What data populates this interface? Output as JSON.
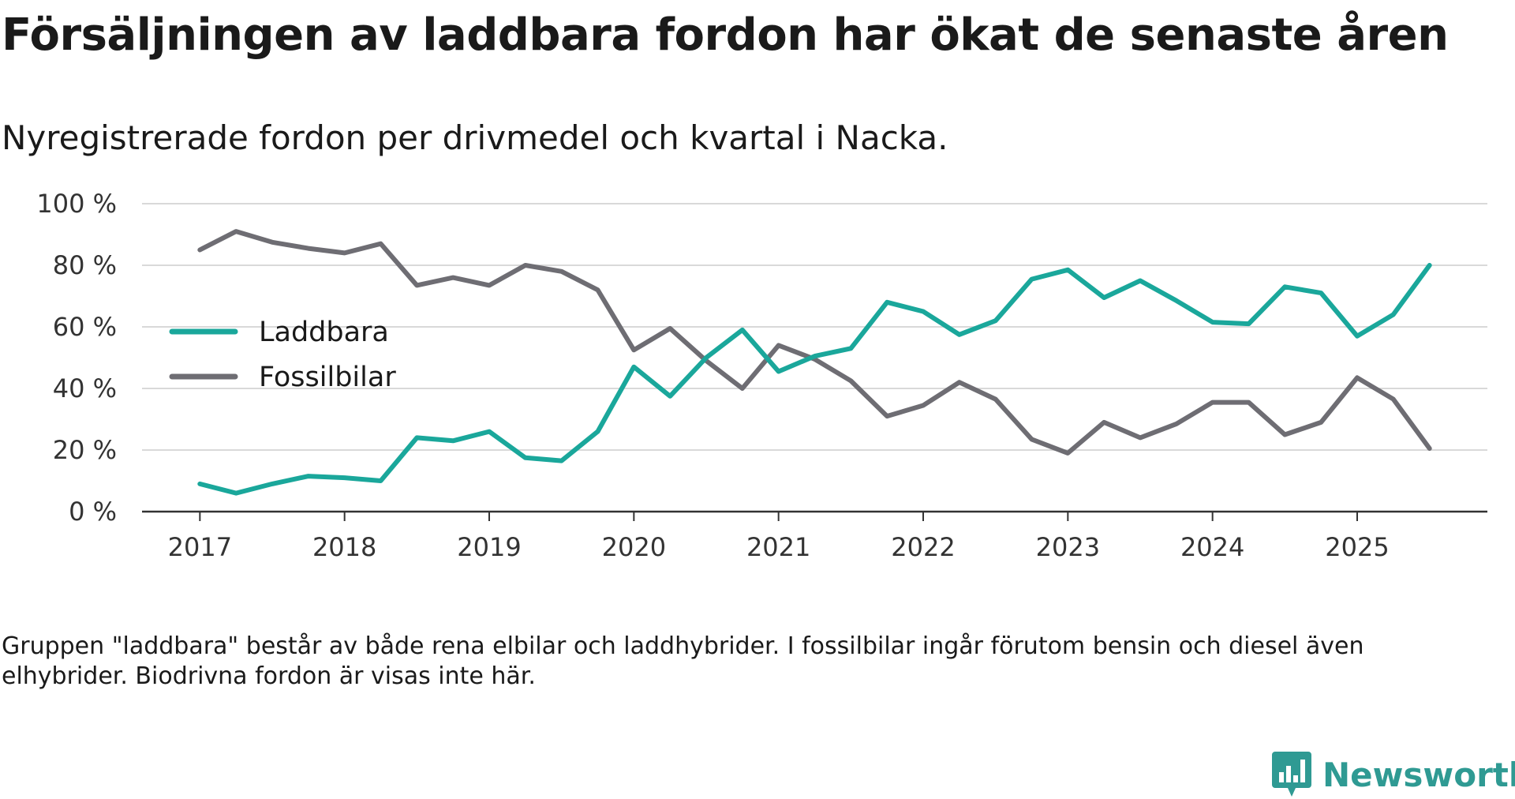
{
  "title": "Försäljningen av laddbara fordon har ökat de senaste åren",
  "subtitle": "Nyregistrerade fordon per drivmedel och kvartal i Nacka.",
  "footnote": "Gruppen \"laddbara\" består av både rena elbilar och laddhybrider. I fossilbilar ingår förutom bensin och diesel även elhybrider. Biodrivna fordon är visas inte här.",
  "brand": {
    "name": "Newsworthy",
    "icon": "newsworthy-logo-icon"
  },
  "colors": {
    "laddbara": "#1aa79b",
    "fossilbilar": "#6e6d73",
    "grid": "#d9d9d9",
    "axis": "#333333",
    "brand": "#2f9a93"
  },
  "chart_data": {
    "type": "line",
    "title": "Försäljningen av laddbara fordon har ökat de senaste åren",
    "subtitle": "Nyregistrerade fordon per drivmedel och kvartal i Nacka.",
    "xlabel": "",
    "ylabel": "",
    "x": [
      2017.0,
      2017.25,
      2017.5,
      2017.75,
      2018.0,
      2018.25,
      2018.5,
      2018.75,
      2019.0,
      2019.25,
      2019.5,
      2019.75,
      2020.0,
      2020.25,
      2020.5,
      2020.75,
      2021.0,
      2021.25,
      2021.5,
      2021.75,
      2022.0,
      2022.25,
      2022.5,
      2022.75,
      2023.0,
      2023.25,
      2023.5,
      2023.75,
      2024.0,
      2024.25,
      2024.5,
      2024.75,
      2025.0,
      2025.25,
      2025.5
    ],
    "xlim": [
      2016.6,
      2025.9
    ],
    "ylim": [
      0,
      100
    ],
    "x_ticks": [
      2017,
      2018,
      2019,
      2020,
      2021,
      2022,
      2023,
      2024,
      2025
    ],
    "x_tick_labels": [
      "2017",
      "2018",
      "2019",
      "2020",
      "2021",
      "2022",
      "2023",
      "2024",
      "2025"
    ],
    "y_ticks": [
      0,
      20,
      40,
      60,
      80,
      100
    ],
    "y_tick_labels": [
      "0 %",
      "20 %",
      "40 %",
      "60 %",
      "80 %",
      "100 %"
    ],
    "grid": true,
    "legend_position": "left-middle",
    "series": [
      {
        "name": "Laddbara",
        "key": "laddbara",
        "values": [
          9,
          6,
          9,
          11.5,
          11,
          10,
          24,
          23,
          26,
          17.5,
          16.5,
          26,
          47,
          37.5,
          50,
          59,
          45.5,
          50.5,
          53,
          68,
          65,
          57.5,
          62,
          75.5,
          78.5,
          69.5,
          75,
          68.5,
          61.5,
          61,
          73,
          71,
          57,
          64,
          80
        ]
      },
      {
        "name": "Fossilbilar",
        "key": "fossilbilar",
        "values": [
          85,
          91,
          87.5,
          85.5,
          84,
          87,
          73.5,
          76,
          73.5,
          80,
          78,
          72,
          52.5,
          59.5,
          49,
          40,
          54,
          49.5,
          42.5,
          31,
          34.5,
          42,
          36.5,
          23.5,
          19,
          29,
          24,
          28.5,
          35.5,
          35.5,
          25,
          29,
          43.5,
          36.5,
          20.5
        ]
      }
    ]
  }
}
